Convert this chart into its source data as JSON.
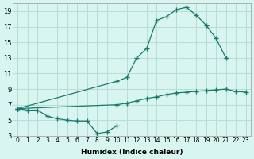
{
  "background_color": "#d8f5f0",
  "grid_color": "#b8dcd6",
  "line_color": "#1a7a6e",
  "xlabel": "Humidex (Indice chaleur)",
  "xlim": [
    -0.5,
    23.5
  ],
  "ylim": [
    3,
    20
  ],
  "xticks": [
    0,
    1,
    2,
    3,
    4,
    5,
    6,
    7,
    8,
    9,
    10,
    11,
    12,
    13,
    14,
    15,
    16,
    17,
    18,
    19,
    20,
    21,
    22,
    23
  ],
  "yticks": [
    3,
    5,
    7,
    9,
    11,
    13,
    15,
    17,
    19
  ],
  "curve_top_x": [
    0,
    10,
    11,
    12,
    13,
    14,
    15,
    16,
    17,
    18,
    19,
    20,
    21
  ],
  "curve_top_y": [
    6.5,
    10.0,
    10.5,
    13.0,
    14.2,
    17.8,
    18.3,
    19.2,
    19.5,
    18.5,
    17.2,
    15.5,
    13.0
  ],
  "curve_bottom_x": [
    0,
    1,
    2,
    3,
    4,
    5,
    6,
    7,
    8,
    9,
    10
  ],
  "curve_bottom_y": [
    6.5,
    6.3,
    6.3,
    5.5,
    5.2,
    5.0,
    4.9,
    4.9,
    3.3,
    3.5,
    4.3
  ],
  "curve_base_x": [
    0,
    10,
    11,
    12,
    13,
    14,
    15,
    16,
    17,
    18,
    19,
    20,
    21,
    22,
    23
  ],
  "curve_base_y": [
    6.5,
    7.0,
    7.2,
    7.5,
    7.8,
    8.0,
    8.3,
    8.5,
    8.6,
    8.7,
    8.8,
    8.9,
    9.0,
    8.7,
    8.6
  ]
}
